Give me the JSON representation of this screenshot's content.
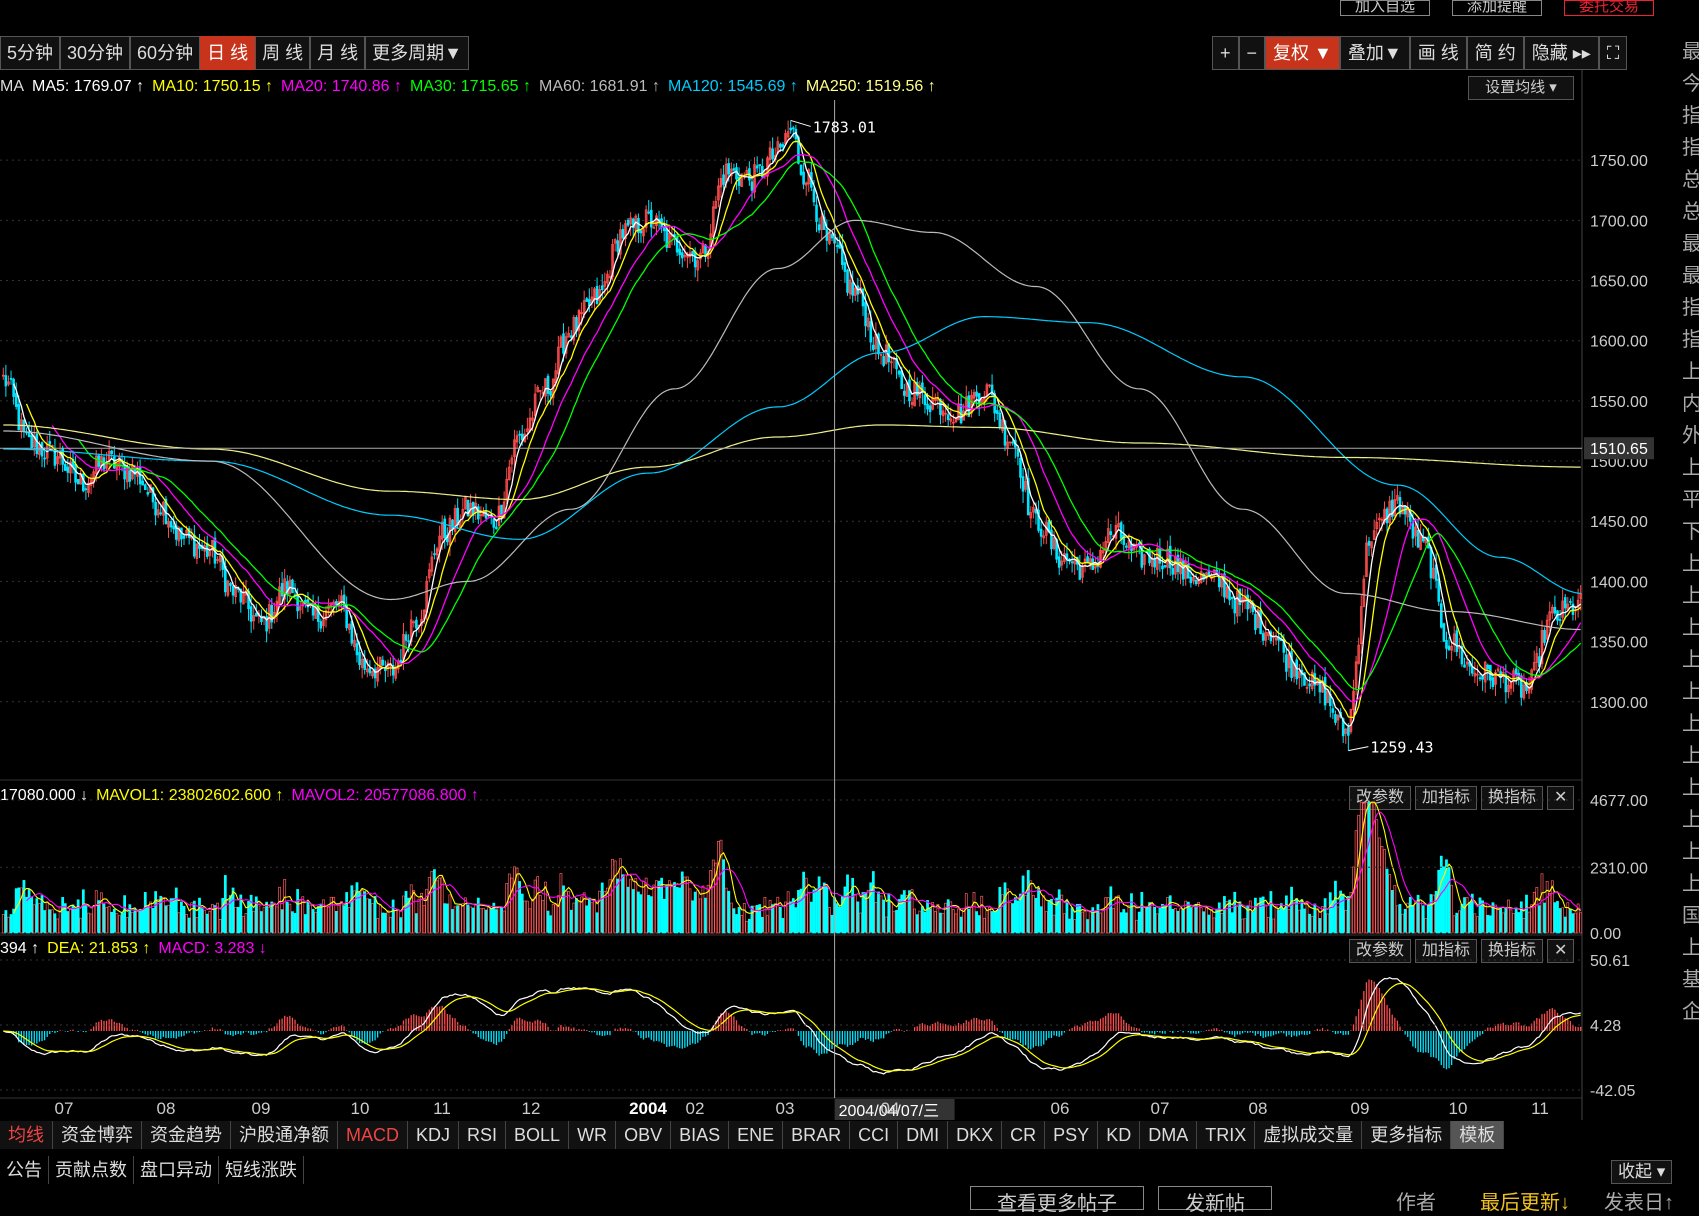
{
  "top_buttons": [
    "加入自选",
    "添加提醒",
    "委托交易"
  ],
  "periods": [
    {
      "label": "5分钟",
      "active": false
    },
    {
      "label": "30分钟",
      "active": false
    },
    {
      "label": "60分钟",
      "active": false
    },
    {
      "label": "日 线",
      "active": true
    },
    {
      "label": "周 线",
      "active": false
    },
    {
      "label": "月 线",
      "active": false
    },
    {
      "label": "更多周期▼",
      "active": false
    }
  ],
  "toolbar": [
    {
      "label": "+",
      "active": false
    },
    {
      "label": "−",
      "active": false
    },
    {
      "label": "复权 ▼",
      "active": true
    },
    {
      "label": "叠加▼",
      "active": false
    },
    {
      "label": "画 线",
      "active": false
    },
    {
      "label": "简 约",
      "active": false
    },
    {
      "label": "隐藏 ▸▸",
      "active": false
    },
    {
      "label": "⛶",
      "active": false
    }
  ],
  "right_edge_chars": [
    "最",
    "今",
    "指",
    "指",
    "总",
    "总",
    "最",
    "最",
    "指",
    "指",
    "上",
    "内",
    "外",
    "上",
    "平",
    "下",
    "上",
    "上",
    "上",
    "上",
    "上",
    "上",
    "上",
    "上",
    "上",
    "上",
    "上",
    "国",
    "上",
    "基",
    "企"
  ],
  "ma_legend": [
    {
      "text": "MA5: 1769.07 ↑",
      "color": "#ffffff"
    },
    {
      "text": "MA10: 1750.15 ↑",
      "color": "#ffff00"
    },
    {
      "text": "MA20: 1740.86 ↑",
      "color": "#ff00ff"
    },
    {
      "text": "MA30: 1715.65 ↑",
      "color": "#00ff00"
    },
    {
      "text": "MA60: 1681.91 ↑",
      "color": "#bbbbbb"
    },
    {
      "text": "MA120: 1545.69 ↑",
      "color": "#00ccff"
    },
    {
      "text": "MA250: 1519.56 ↑",
      "color": "#ffff88"
    }
  ],
  "ma_prefix": "MA",
  "set_ma_button": "设置均线 ▾",
  "vol_legend": [
    {
      "text": "17080.000 ↓",
      "color": "#ffffff"
    },
    {
      "text": "MAVOL1: 23802602.600 ↑",
      "color": "#ffff00"
    },
    {
      "text": "MAVOL2: 20577086.800 ↑",
      "color": "#ff00ff"
    }
  ],
  "macd_legend": [
    {
      "text": "394 ↑",
      "color": "#ffffff"
    },
    {
      "text": "DEA: 21.853 ↑",
      "color": "#ffff00"
    },
    {
      "text": "MACD: 3.283 ↓",
      "color": "#ff00ff"
    }
  ],
  "sub_buttons": [
    "改参数",
    "加指标",
    "换指标",
    "✕"
  ],
  "indicator_tabs": [
    {
      "label": "均线",
      "active": true
    },
    {
      "label": "资金博弈",
      "active": false
    },
    {
      "label": "资金趋势",
      "active": false
    },
    {
      "label": "沪股通净额",
      "active": false
    },
    {
      "label": "MACD",
      "active": true
    },
    {
      "label": "KDJ",
      "active": false
    },
    {
      "label": "RSI",
      "active": false
    },
    {
      "label": "BOLL",
      "active": false
    },
    {
      "label": "WR",
      "active": false
    },
    {
      "label": "OBV",
      "active": false
    },
    {
      "label": "BIAS",
      "active": false
    },
    {
      "label": "ENE",
      "active": false
    },
    {
      "label": "BRAR",
      "active": false
    },
    {
      "label": "CCI",
      "active": false
    },
    {
      "label": "DMI",
      "active": false
    },
    {
      "label": "DKX",
      "active": false
    },
    {
      "label": "CR",
      "active": false
    },
    {
      "label": "PSY",
      "active": false
    },
    {
      "label": "KD",
      "active": false
    },
    {
      "label": "DMA",
      "active": false
    },
    {
      "label": "TRIX",
      "active": false
    },
    {
      "label": "虚拟成交量",
      "active": false
    },
    {
      "label": "更多指标",
      "active": false
    },
    {
      "label": "模板",
      "active": false
    }
  ],
  "bottom_tabs": [
    "公告",
    "贡献点数",
    "盘口异动",
    "短线涨跌"
  ],
  "collapse_button": "收起 ▾",
  "forum": {
    "more": "查看更多帖子",
    "post": "发新帖",
    "author": "作者",
    "last_update": "最后更新↓",
    "post_date": "发表日↑"
  },
  "crosshair_price": "1510.65",
  "crosshair_date": "2004/04/07/三",
  "chart_data": {
    "type": "candlestick",
    "title": "",
    "date_range": [
      "2003-06",
      "2004-11"
    ],
    "x_ticks": [
      "07",
      "08",
      "09",
      "10",
      "11",
      "12",
      "2004",
      "02",
      "03",
      "04",
      "05",
      "06",
      "07",
      "08",
      "09",
      "10",
      "11"
    ],
    "price_axis": {
      "ticks": [
        1300,
        1350,
        1400,
        1450,
        1500,
        1550,
        1600,
        1650,
        1700,
        1750
      ],
      "tick_labels": [
        "1300.00",
        "1350.00",
        "1400.00",
        "1450.00",
        "1500.00",
        "1550.00",
        "1600.00",
        "1650.00",
        "1700.00",
        "1750.00"
      ],
      "ylim": [
        1235,
        1800
      ]
    },
    "high_mark": {
      "label": "1783.01",
      "value": 1783.01
    },
    "low_mark": {
      "label": "1259.43",
      "value": 1259.43
    },
    "close_anchors": [
      [
        0,
        1568
      ],
      [
        10,
        1515
      ],
      [
        20,
        1505
      ],
      [
        30,
        1482
      ],
      [
        40,
        1500
      ],
      [
        50,
        1492
      ],
      [
        60,
        1465
      ],
      [
        70,
        1435
      ],
      [
        80,
        1425
      ],
      [
        90,
        1390
      ],
      [
        100,
        1365
      ],
      [
        110,
        1395
      ],
      [
        120,
        1370
      ],
      [
        130,
        1380
      ],
      [
        140,
        1330
      ],
      [
        150,
        1325
      ],
      [
        160,
        1370
      ],
      [
        170,
        1440
      ],
      [
        180,
        1460
      ],
      [
        190,
        1450
      ],
      [
        200,
        1520
      ],
      [
        210,
        1560
      ],
      [
        220,
        1610
      ],
      [
        230,
        1635
      ],
      [
        240,
        1690
      ],
      [
        250,
        1700
      ],
      [
        260,
        1680
      ],
      [
        270,
        1670
      ],
      [
        280,
        1740
      ],
      [
        290,
        1735
      ],
      [
        300,
        1755
      ],
      [
        305,
        1775
      ],
      [
        310,
        1740
      ],
      [
        320,
        1680
      ],
      [
        330,
        1640
      ],
      [
        340,
        1590
      ],
      [
        350,
        1560
      ],
      [
        360,
        1550
      ],
      [
        370,
        1540
      ],
      [
        380,
        1560
      ],
      [
        390,
        1520
      ],
      [
        400,
        1450
      ],
      [
        410,
        1420
      ],
      [
        420,
        1410
      ],
      [
        430,
        1440
      ],
      [
        440,
        1420
      ],
      [
        450,
        1420
      ],
      [
        460,
        1405
      ],
      [
        470,
        1400
      ],
      [
        480,
        1380
      ],
      [
        490,
        1360
      ],
      [
        500,
        1330
      ],
      [
        510,
        1310
      ],
      [
        520,
        1275
      ],
      [
        530,
        1440
      ],
      [
        540,
        1465
      ],
      [
        550,
        1430
      ],
      [
        560,
        1350
      ],
      [
        570,
        1325
      ],
      [
        580,
        1320
      ],
      [
        590,
        1310
      ],
      [
        600,
        1370
      ],
      [
        610,
        1380
      ]
    ],
    "ma_series": [
      {
        "name": "MA120",
        "color": "#00ccff",
        "anchors": [
          [
            0,
            1510
          ],
          [
            80,
            1500
          ],
          [
            150,
            1455
          ],
          [
            200,
            1435
          ],
          [
            250,
            1490
          ],
          [
            300,
            1545
          ],
          [
            340,
            1590
          ],
          [
            380,
            1620
          ],
          [
            420,
            1615
          ],
          [
            480,
            1570
          ],
          [
            540,
            1480
          ],
          [
            580,
            1420
          ],
          [
            612,
            1390
          ]
        ]
      },
      {
        "name": "MA250",
        "color": "#eeee88",
        "anchors": [
          [
            0,
            1530
          ],
          [
            80,
            1510
          ],
          [
            150,
            1475
          ],
          [
            200,
            1468
          ],
          [
            250,
            1495
          ],
          [
            300,
            1520
          ],
          [
            340,
            1530
          ],
          [
            380,
            1528
          ],
          [
            440,
            1515
          ],
          [
            520,
            1503
          ],
          [
            612,
            1495
          ]
        ]
      },
      {
        "name": "MA60",
        "color": "#bbbbbb",
        "anchors": [
          [
            0,
            1525
          ],
          [
            80,
            1500
          ],
          [
            150,
            1385
          ],
          [
            180,
            1400
          ],
          [
            220,
            1460
          ],
          [
            260,
            1560
          ],
          [
            300,
            1660
          ],
          [
            330,
            1700
          ],
          [
            360,
            1690
          ],
          [
            400,
            1645
          ],
          [
            440,
            1560
          ],
          [
            480,
            1460
          ],
          [
            520,
            1390
          ],
          [
            560,
            1375
          ],
          [
            612,
            1360
          ]
        ]
      }
    ],
    "volume_axis": {
      "ticks": [
        0,
        2310,
        4677
      ],
      "tick_labels": [
        "0.00",
        "2310.00",
        "4677.00"
      ]
    },
    "macd_axis": {
      "ticks": [
        -42.05,
        4.28,
        50.61
      ],
      "tick_labels": [
        "-42.05",
        "4.28",
        "50.61"
      ]
    }
  }
}
